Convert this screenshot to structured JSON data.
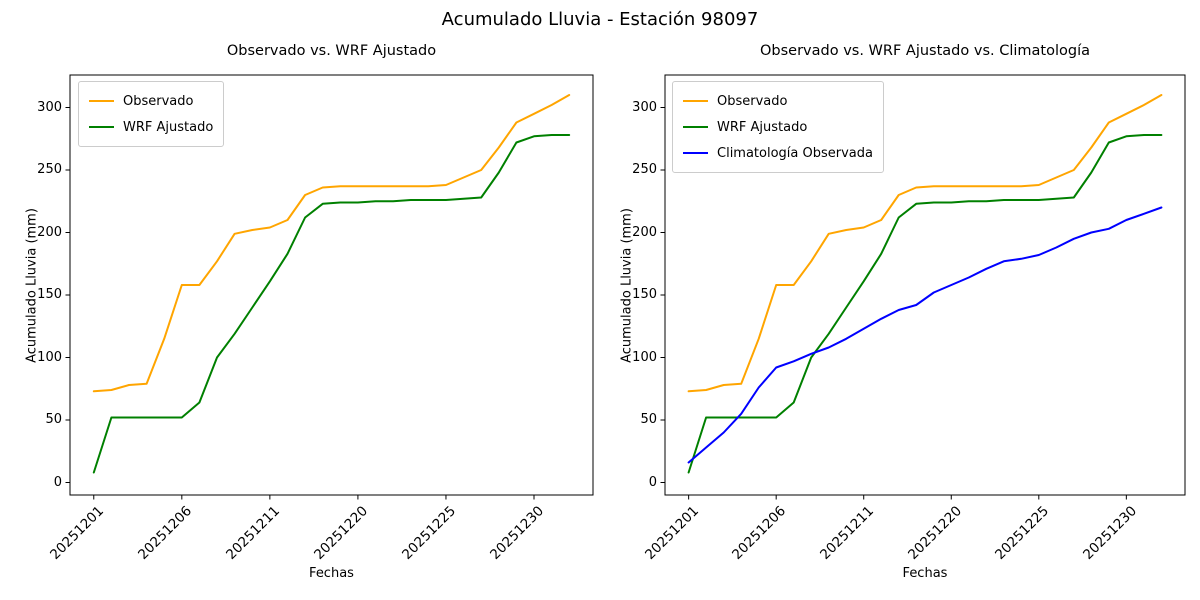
{
  "figure": {
    "suptitle": "Acumulado Lluvia - Estación 98097"
  },
  "colors": {
    "observado": "#FFA500",
    "wrf_ajustado": "#008000",
    "climatologia": "#0000FF",
    "spine": "#000000",
    "legend_border": "#cccccc"
  },
  "chart_data": [
    {
      "type": "line",
      "title": "Observado vs. WRF Ajustado",
      "xlabel": "Fechas",
      "ylabel": "Acumulado Lluvia (mm)",
      "ylim": [
        -10,
        326
      ],
      "y_ticks": [
        0,
        50,
        100,
        150,
        200,
        250,
        300
      ],
      "x_tick_indices": [
        0,
        5,
        10,
        15,
        20,
        25
      ],
      "x_tick_labels": [
        "20251201",
        "20251206",
        "20251211",
        "20251220",
        "20251225",
        "20251230"
      ],
      "legend_position": "upper-left",
      "grid": false,
      "series": [
        {
          "name": "Observado",
          "color": "#FFA500",
          "values": [
            73,
            74,
            78,
            79,
            115,
            158,
            158,
            177,
            199,
            202,
            204,
            210,
            230,
            236,
            237,
            237,
            237,
            237,
            237,
            237,
            238,
            244,
            250,
            268,
            288,
            295,
            302,
            310
          ]
        },
        {
          "name": "WRF Ajustado",
          "color": "#008000",
          "values": [
            8,
            52,
            52,
            52,
            52,
            52,
            64,
            100,
            119,
            140,
            161,
            183,
            212,
            223,
            224,
            224,
            225,
            225,
            226,
            226,
            226,
            227,
            228,
            248,
            272,
            277,
            278,
            278
          ]
        }
      ]
    },
    {
      "type": "line",
      "title": "Observado vs. WRF Ajustado vs. Climatología",
      "xlabel": "Fechas",
      "ylabel": "Acumulado Lluvia (mm)",
      "ylim": [
        -10,
        326
      ],
      "y_ticks": [
        0,
        50,
        100,
        150,
        200,
        250,
        300
      ],
      "x_tick_indices": [
        0,
        5,
        10,
        15,
        20,
        25
      ],
      "x_tick_labels": [
        "20251201",
        "20251206",
        "20251211",
        "20251220",
        "20251225",
        "20251230"
      ],
      "legend_position": "upper-left",
      "grid": false,
      "series": [
        {
          "name": "Observado",
          "color": "#FFA500",
          "values": [
            73,
            74,
            78,
            79,
            115,
            158,
            158,
            177,
            199,
            202,
            204,
            210,
            230,
            236,
            237,
            237,
            237,
            237,
            237,
            237,
            238,
            244,
            250,
            268,
            288,
            295,
            302,
            310
          ]
        },
        {
          "name": "WRF Ajustado",
          "color": "#008000",
          "values": [
            8,
            52,
            52,
            52,
            52,
            52,
            64,
            100,
            119,
            140,
            161,
            183,
            212,
            223,
            224,
            224,
            225,
            225,
            226,
            226,
            226,
            227,
            228,
            248,
            272,
            277,
            278,
            278
          ]
        },
        {
          "name": "Climatología Observada",
          "color": "#0000FF",
          "values": [
            16,
            28,
            40,
            55,
            76,
            92,
            97,
            103,
            108,
            115,
            123,
            131,
            138,
            142,
            152,
            158,
            164,
            171,
            177,
            179,
            182,
            188,
            195,
            200,
            203,
            210,
            215,
            220
          ]
        }
      ]
    }
  ]
}
